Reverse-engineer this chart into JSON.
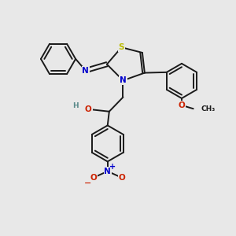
{
  "background_color": "#e8e8e8",
  "bond_color": "#1a1a1a",
  "atom_colors": {
    "S": "#bbbb00",
    "N": "#0000cc",
    "O": "#cc2200",
    "C": "#1a1a1a",
    "H": "#5a8a8a"
  }
}
